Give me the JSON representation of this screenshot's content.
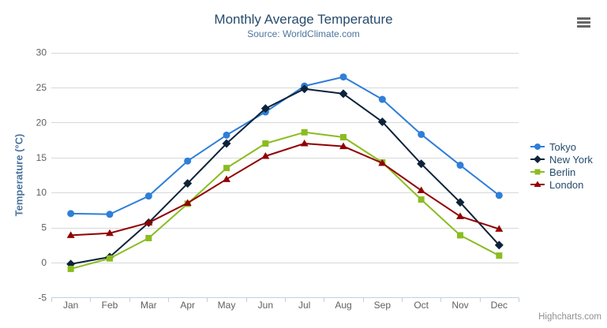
{
  "chart": {
    "title": "Monthly Average Temperature",
    "subtitle": "Source: WorldClimate.com",
    "credits": "Highcharts.com",
    "export_menu": {
      "icon": "hamburger"
    }
  },
  "colors": {
    "background": "#ffffff",
    "title": "#274b6d",
    "subtitle": "#4d759e",
    "axis_title": "#4d759e",
    "axis_label": "#606060",
    "axis_line": "#c0d0e0",
    "gridline": "#d8d8d8",
    "legend_text": "#274b6d",
    "credits_text": "#909090",
    "export_icon": "#666666"
  },
  "chart_data": {
    "type": "line",
    "title": "Monthly Average Temperature",
    "subtitle": "Source: WorldClimate.com",
    "categories": [
      "Jan",
      "Feb",
      "Mar",
      "Apr",
      "May",
      "Jun",
      "Jul",
      "Aug",
      "Sep",
      "Oct",
      "Nov",
      "Dec"
    ],
    "series": [
      {
        "name": "Tokyo",
        "color": "#2f7ed8",
        "marker": "circle",
        "values": [
          7.0,
          6.9,
          9.5,
          14.5,
          18.2,
          21.5,
          25.2,
          26.5,
          23.3,
          18.3,
          13.9,
          9.6
        ]
      },
      {
        "name": "New York",
        "color": "#0d233a",
        "marker": "diamond",
        "values": [
          -0.2,
          0.8,
          5.7,
          11.3,
          17.0,
          22.0,
          24.8,
          24.1,
          20.1,
          14.1,
          8.6,
          2.5
        ]
      },
      {
        "name": "Berlin",
        "color": "#8bbc21",
        "marker": "square",
        "values": [
          -0.9,
          0.6,
          3.5,
          8.4,
          13.5,
          17.0,
          18.6,
          17.9,
          14.3,
          9.0,
          3.9,
          1.0
        ]
      },
      {
        "name": "London",
        "color": "#910000",
        "marker": "triangle",
        "values": [
          3.9,
          4.2,
          5.7,
          8.5,
          11.9,
          15.2,
          17.0,
          16.6,
          14.2,
          10.3,
          6.6,
          4.8
        ]
      }
    ],
    "xlabel": "",
    "ylabel": "Temperature (°C)",
    "ylim": [
      -5,
      30
    ],
    "yticks": [
      -5,
      0,
      5,
      10,
      15,
      20,
      25,
      30
    ],
    "grid": true,
    "legend_position": "right"
  }
}
